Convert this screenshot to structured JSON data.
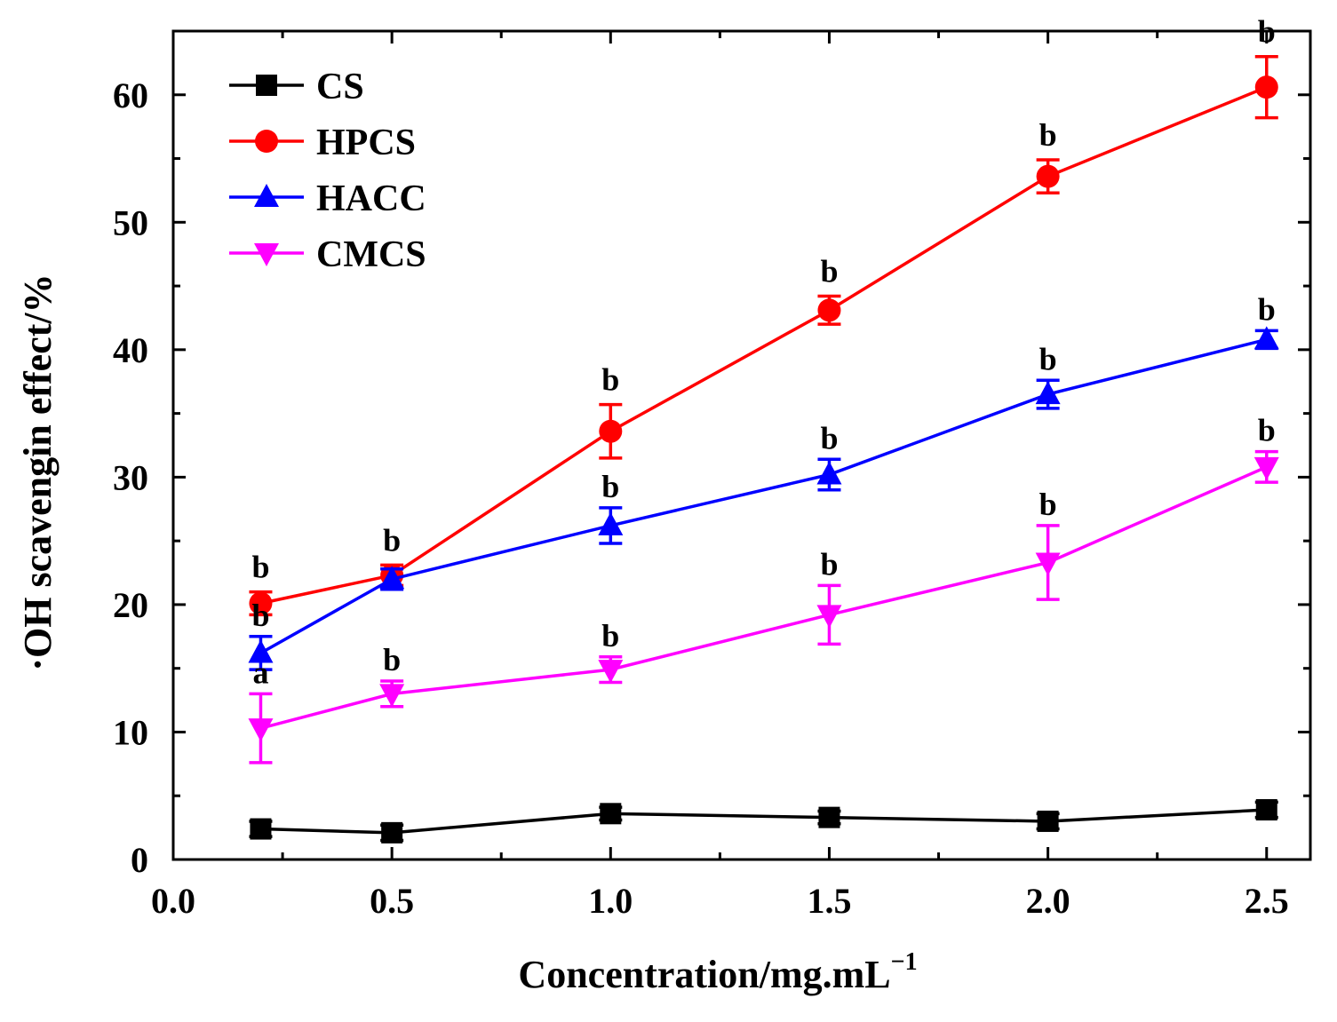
{
  "chart_data": {
    "type": "line",
    "title": "",
    "xlabel": "Concentration/mg.mL",
    "xlabel_superscript": "−1",
    "ylabel": "·OH scavengin effect/%",
    "xlim": [
      0.0,
      2.6
    ],
    "ylim": [
      0,
      65
    ],
    "x_ticks": [
      "0.0",
      "0.5",
      "1.0",
      "1.5",
      "2.0",
      "2.5"
    ],
    "y_ticks": [
      "0",
      "10",
      "20",
      "30",
      "40",
      "50",
      "60"
    ],
    "x": [
      0.2,
      0.5,
      1.0,
      1.5,
      2.0,
      2.5
    ],
    "legend_position": "top-left",
    "series": [
      {
        "name": "CS",
        "color": "#000000",
        "marker": "square",
        "values": [
          2.4,
          2.1,
          3.6,
          3.3,
          3.0,
          3.9
        ],
        "errors": [
          0.6,
          0.6,
          0.5,
          0.5,
          0.6,
          0.6
        ],
        "sig_labels": [
          "",
          "",
          "",
          "",
          "",
          ""
        ]
      },
      {
        "name": "HPCS",
        "color": "#ff0000",
        "marker": "circle",
        "values": [
          20.1,
          22.3,
          33.6,
          43.1,
          53.6,
          60.6
        ],
        "errors": [
          0.9,
          0.8,
          2.1,
          1.1,
          1.3,
          2.4
        ],
        "sig_labels": [
          "b",
          "b",
          "b",
          "b",
          "b",
          "b"
        ]
      },
      {
        "name": "HACC",
        "color": "#0000ff",
        "marker": "triangle-up",
        "values": [
          16.2,
          22.0,
          26.2,
          30.2,
          36.5,
          40.8
        ],
        "errors": [
          1.3,
          0.8,
          1.4,
          1.2,
          1.1,
          0.7
        ],
        "sig_labels": [
          "b",
          "",
          "b",
          "b",
          "b",
          "b"
        ]
      },
      {
        "name": "CMCS",
        "color": "#ff00ff",
        "marker": "triangle-down",
        "values": [
          10.3,
          13.0,
          14.9,
          19.2,
          23.3,
          30.8
        ],
        "errors": [
          2.7,
          1.0,
          1.0,
          2.3,
          2.9,
          1.2
        ],
        "sig_labels": [
          "a",
          "b",
          "b",
          "b",
          "b",
          "b"
        ]
      }
    ]
  }
}
